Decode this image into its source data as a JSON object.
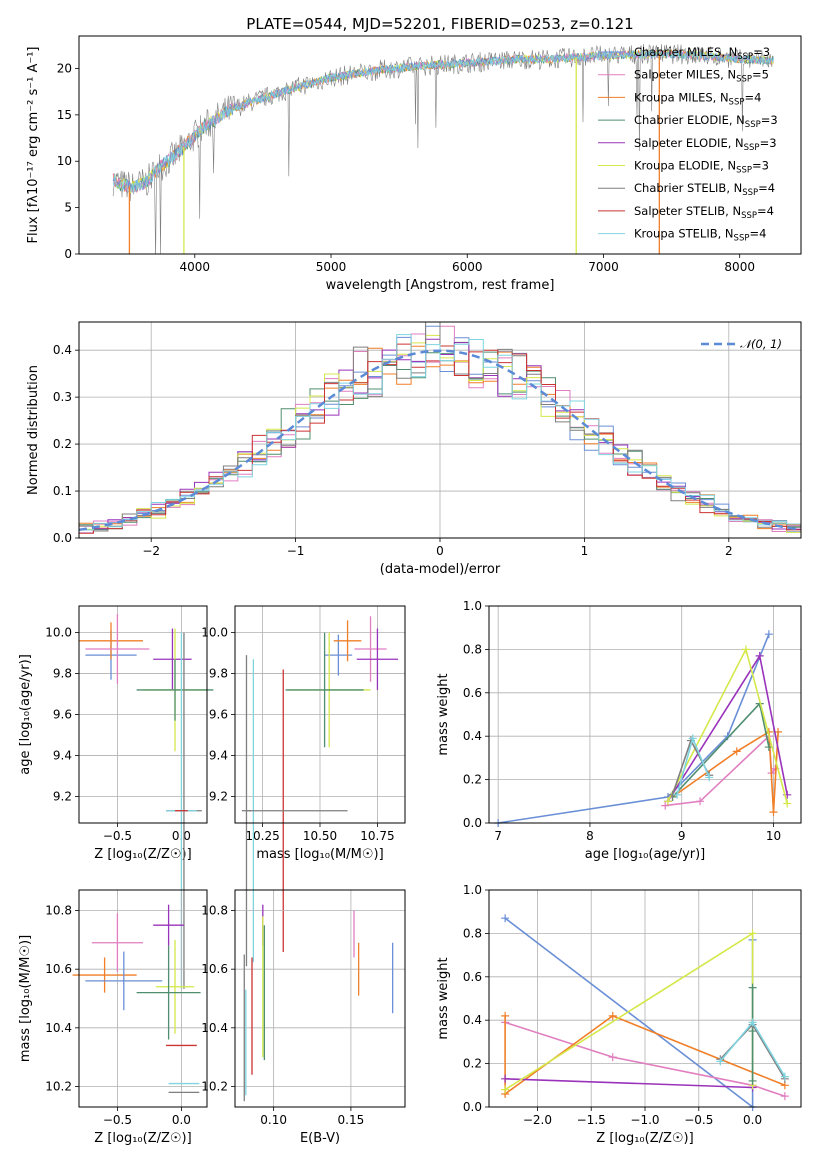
{
  "title": "PLATE=0544, MJD=52201, FIBERID=0253, z=0.121",
  "colors": {
    "chabrier_miles": "#6a8fd6",
    "salpeter_miles": "#e17ec0",
    "kroupa_miles": "#f07f28",
    "chabrier_elodie": "#4f8f6f",
    "salpeter_elodie": "#9933bb",
    "kroupa_elodie": "#d4e84a",
    "chabrier_stelib": "#7f7f7f",
    "salpeter_stelib": "#cc3333",
    "kroupa_stelib": "#7fd4e0",
    "gauss": "#5b8ad6"
  },
  "legend": [
    {
      "base": "Chabrier MILES",
      "sub": "SSP",
      "val": "=3",
      "color": "#6a8fd6"
    },
    {
      "base": "Salpeter MILES",
      "sub": "SSP",
      "val": "=5",
      "color": "#e17ec0"
    },
    {
      "base": "Kroupa MILES",
      "sub": "SSP",
      "val": "=4",
      "color": "#f07f28"
    },
    {
      "base": "Chabrier ELODIE",
      "sub": "SSP",
      "val": "=3",
      "color": "#4f8f6f"
    },
    {
      "base": "Salpeter ELODIE",
      "sub": "SSP",
      "val": "=3",
      "color": "#9933bb"
    },
    {
      "base": "Kroupa ELODIE",
      "sub": "SSP",
      "val": "=3",
      "color": "#d4e84a"
    },
    {
      "base": "Chabrier STELIB",
      "sub": "SSP",
      "val": "=4",
      "color": "#7f7f7f"
    },
    {
      "base": "Salpeter STELIB",
      "sub": "SSP",
      "val": "=4",
      "color": "#cc3333"
    },
    {
      "base": "Kroupa STELIB",
      "sub": "SSP",
      "val": "=4",
      "color": "#7fd4e0"
    }
  ],
  "chart_data": [
    {
      "id": "spectrum",
      "type": "line",
      "xlabel": "wavelength [Angstrom, rest frame]",
      "ylabel": "Flux [fλ10⁻¹⁷ erg cm⁻² s⁻¹ A⁻¹]",
      "xlim": [
        3150,
        8450
      ],
      "ylim": [
        0,
        23.5
      ],
      "xticks": [
        4000,
        5000,
        6000,
        7000,
        8000
      ],
      "yticks": [
        0,
        5,
        10,
        15,
        20
      ],
      "spectrum_trend": {
        "x": [
          3400,
          3450,
          3550,
          3650,
          3750,
          3850,
          3950,
          4050,
          4150,
          4250,
          4400,
          4600,
          4800,
          5000,
          5200,
          5400,
          5600,
          5800,
          6000,
          6200,
          6400,
          6600,
          6800,
          7000,
          7200,
          7400,
          7600,
          7800,
          8000,
          8200
        ],
        "y": [
          8.0,
          7.5,
          7.2,
          7.8,
          9.5,
          10.5,
          12.0,
          13.5,
          14.5,
          15.5,
          16.3,
          17.3,
          18.2,
          19.0,
          19.5,
          19.9,
          20.2,
          20.4,
          20.6,
          20.8,
          21.0,
          21.0,
          21.2,
          21.4,
          21.5,
          21.6,
          21.5,
          21.3,
          21.0,
          20.9
        ]
      },
      "spikes": [
        {
          "x": 3520,
          "color": "#f07f28"
        },
        {
          "x": 3920,
          "color": "#d4e84a"
        },
        {
          "x": 6800,
          "color": "#d4e84a"
        },
        {
          "x": 7410,
          "color": "#f07f28"
        }
      ]
    },
    {
      "id": "residual_hist",
      "type": "histogram",
      "xlabel": "(data-model)/error",
      "ylabel": "Normed distribution",
      "xlim": [
        -2.5,
        2.5
      ],
      "ylim": [
        0,
        0.46
      ],
      "xticks": [
        -2,
        -1,
        0,
        1,
        2
      ],
      "yticks": [
        0.0,
        0.1,
        0.2,
        0.3,
        0.4
      ],
      "bin_width": 0.1,
      "gaussian_label": "𝒩(0, 1)",
      "gaussian": {
        "mean": 0,
        "sigma": 1
      }
    },
    {
      "id": "age_vs_Z",
      "type": "scatter",
      "xlabel": "Z [log₁₀(Z/Z☉)]",
      "ylabel": "age  [log₁₀(age/yr)]",
      "xlim": [
        -0.8,
        0.2
      ],
      "ylim": [
        9.07,
        10.13
      ],
      "xticks": [
        -0.5,
        0.0
      ],
      "yticks": [
        9.2,
        9.4,
        9.6,
        9.8,
        10.0
      ],
      "points": [
        {
          "model": "chabrier_miles",
          "x": -0.55,
          "xerr": 0.2,
          "y": 9.89,
          "yerr": 0.12
        },
        {
          "model": "kroupa_miles",
          "x": -0.55,
          "xerr": 0.25,
          "y": 9.96,
          "yerr": 0.09
        },
        {
          "model": "salpeter_miles",
          "x": -0.5,
          "xerr": 0.25,
          "y": 9.92,
          "yerr": 0.17
        },
        {
          "model": "salpeter_elodie",
          "x": -0.07,
          "xerr": 0.15,
          "y": 9.87,
          "yerr": 0.15
        },
        {
          "model": "kroupa_elodie",
          "x": -0.05,
          "xerr": 0.25,
          "y": 9.72,
          "yerr": 0.3
        },
        {
          "model": "chabrier_elodie",
          "x": -0.05,
          "xerr": 0.3,
          "y": 9.72,
          "yerr": 0.15
        },
        {
          "model": "chabrier_stelib",
          "x": 0.02,
          "xerr": 0.14,
          "y": 9.13,
          "yerr": 0.87
        },
        {
          "model": "kroupa_stelib",
          "x": 0.0,
          "xerr": 0.12,
          "y": 9.13,
          "yerr": 0.87
        },
        {
          "model": "salpeter_stelib",
          "x": 0.0,
          "xerr": 0.05,
          "y": 9.13,
          "yerr": 0.0
        }
      ]
    },
    {
      "id": "age_vs_mass",
      "type": "scatter",
      "xlabel": "mass [log₁₀(M/M☉)]",
      "ylabel": "",
      "xlim": [
        10.13,
        10.87
      ],
      "ylim": [
        9.07,
        10.13
      ],
      "xticks": [
        10.25,
        10.5,
        10.75
      ],
      "yticks": [
        9.2,
        9.4,
        9.6,
        9.8,
        10.0
      ],
      "points": [
        {
          "model": "chabrier_miles",
          "x": 10.58,
          "xerr": 0.06,
          "y": 9.89,
          "yerr": 0.1
        },
        {
          "model": "kroupa_miles",
          "x": 10.62,
          "xerr": 0.06,
          "y": 9.96,
          "yerr": 0.1
        },
        {
          "model": "salpeter_miles",
          "x": 10.72,
          "xerr": 0.07,
          "y": 9.92,
          "yerr": 0.16
        },
        {
          "model": "salpeter_elodie",
          "x": 10.75,
          "xerr": 0.09,
          "y": 9.87,
          "yerr": 0.15
        },
        {
          "model": "kroupa_elodie",
          "x": 10.54,
          "xerr": 0.18,
          "y": 9.72,
          "yerr": 0.28
        },
        {
          "model": "chabrier_elodie",
          "x": 10.52,
          "xerr": 0.17,
          "y": 9.72,
          "yerr": 0.28
        },
        {
          "model": "chabrier_stelib",
          "x": 10.18,
          "xerr": 0.02,
          "y": 9.13,
          "yerr": 0.76
        },
        {
          "model": "kroupa_stelib",
          "x": 10.21,
          "xerr": 0.0,
          "y": 9.13,
          "yerr": 0.74
        },
        {
          "model": "salpeter_stelib",
          "x": 10.34,
          "xerr": 0.0,
          "y": 9.13,
          "yerr": 0.69
        },
        {
          "model": "chabrier_stelib",
          "x": 10.4,
          "xerr": 0.22,
          "y": 9.13,
          "yerr": 0.0
        }
      ]
    },
    {
      "id": "weight_vs_age",
      "type": "line",
      "xlabel": "age  [log₁₀(age/yr)]",
      "ylabel": "mass weight",
      "xlim": [
        6.9,
        10.3
      ],
      "ylim": [
        0,
        1.0
      ],
      "xticks": [
        7,
        8,
        9,
        10
      ],
      "yticks": [
        0.0,
        0.2,
        0.4,
        0.6,
        0.8,
        1.0
      ],
      "series": [
        {
          "model": "chabrier_miles",
          "x": [
            7.0,
            8.85,
            9.5,
            9.95
          ],
          "y": [
            0.0,
            0.12,
            0.4,
            0.87
          ]
        },
        {
          "model": "salpeter_miles",
          "x": [
            8.82,
            9.2,
            9.95,
            9.98,
            10.02
          ],
          "y": [
            0.08,
            0.1,
            0.4,
            0.23,
            0.25
          ]
        },
        {
          "model": "kroupa_miles",
          "x": [
            8.9,
            9.6,
            9.95,
            10.0,
            10.05
          ],
          "y": [
            0.12,
            0.33,
            0.42,
            0.05,
            0.42
          ]
        },
        {
          "model": "chabrier_elodie",
          "x": [
            8.9,
            9.85,
            9.95
          ],
          "y": [
            0.12,
            0.55,
            0.35
          ]
        },
        {
          "model": "salpeter_elodie",
          "x": [
            8.85,
            9.85,
            10.15
          ],
          "y": [
            0.1,
            0.77,
            0.13
          ]
        },
        {
          "model": "kroupa_elodie",
          "x": [
            8.85,
            9.7,
            10.15
          ],
          "y": [
            0.1,
            0.8,
            0.09
          ]
        },
        {
          "model": "chabrier_stelib",
          "x": [
            8.9,
            9.1,
            9.3
          ],
          "y": [
            0.13,
            0.38,
            0.22
          ]
        },
        {
          "model": "kroupa_stelib",
          "x": [
            8.95,
            9.12,
            9.3
          ],
          "y": [
            0.13,
            0.39,
            0.21
          ]
        }
      ]
    },
    {
      "id": "mass_vs_Z",
      "type": "scatter",
      "xlabel": "Z [log₁₀(Z/Z☉)]",
      "ylabel": "mass [log₁₀(M/M☉)]",
      "xlim": [
        -0.8,
        0.2
      ],
      "ylim": [
        10.13,
        10.87
      ],
      "xticks": [
        -0.5,
        0.0
      ],
      "yticks": [
        10.2,
        10.4,
        10.6,
        10.8
      ],
      "points": [
        {
          "model": "kroupa_miles",
          "x": -0.6,
          "xerr": 0.25,
          "y": 10.58,
          "yerr": 0.06
        },
        {
          "model": "salpeter_miles",
          "x": -0.5,
          "xerr": 0.2,
          "y": 10.69,
          "yerr": 0.1
        },
        {
          "model": "chabrier_miles",
          "x": -0.45,
          "xerr": 0.3,
          "y": 10.56,
          "yerr": 0.1
        },
        {
          "model": "salpeter_elodie",
          "x": -0.1,
          "xerr": 0.12,
          "y": 10.75,
          "yerr": 0.07
        },
        {
          "model": "kroupa_elodie",
          "x": -0.05,
          "xerr": 0.15,
          "y": 10.54,
          "yerr": 0.16
        },
        {
          "model": "chabrier_elodie",
          "x": -0.1,
          "xerr": 0.25,
          "y": 10.52,
          "yerr": 0.16
        },
        {
          "model": "salpeter_stelib",
          "x": 0.0,
          "xerr": 0.12,
          "y": 10.34,
          "yerr": 0.0
        },
        {
          "model": "kroupa_stelib",
          "x": 0.02,
          "xerr": 0.12,
          "y": 10.21,
          "yerr": 0.0
        },
        {
          "model": "chabrier_stelib",
          "x": 0.02,
          "xerr": 0.12,
          "y": 10.18,
          "yerr": 0.0
        }
      ]
    },
    {
      "id": "mass_vs_ebv",
      "type": "scatter",
      "xlabel": "E(B-V)",
      "ylabel": "",
      "xlim": [
        0.075,
        0.185
      ],
      "ylim": [
        10.13,
        10.87
      ],
      "xticks": [
        0.1,
        0.15
      ],
      "yticks": [
        10.2,
        10.4,
        10.6,
        10.8
      ],
      "points": [
        {
          "model": "chabrier_miles",
          "x": 0.177,
          "y": 10.57,
          "yerr": 0.12
        },
        {
          "model": "kroupa_miles",
          "x": 0.155,
          "y": 10.6,
          "yerr": 0.09
        },
        {
          "model": "salpeter_miles",
          "x": 0.152,
          "y": 10.72,
          "yerr": 0.08
        },
        {
          "model": "salpeter_elodie",
          "x": 0.093,
          "y": 10.75,
          "yerr": 0.07
        },
        {
          "model": "kroupa_elodie",
          "x": 0.093,
          "y": 10.54,
          "yerr": 0.24
        },
        {
          "model": "chabrier_elodie",
          "x": 0.094,
          "y": 10.52,
          "yerr": 0.23
        },
        {
          "model": "salpeter_stelib",
          "x": 0.086,
          "y": 10.44,
          "yerr": 0.2
        },
        {
          "model": "chabrier_stelib",
          "x": 0.081,
          "y": 10.4,
          "yerr": 0.25
        },
        {
          "model": "kroupa_stelib",
          "x": 0.082,
          "y": 10.35,
          "yerr": 0.18
        }
      ]
    },
    {
      "id": "weight_vs_Z",
      "type": "line",
      "xlabel": "Z [log₁₀(Z/Z☉)]",
      "ylabel": "mass weight",
      "xlim": [
        -2.45,
        0.45
      ],
      "ylim": [
        0,
        1.0
      ],
      "xticks": [
        -2.0,
        -1.5,
        -1.0,
        -0.5,
        0.0
      ],
      "yticks": [
        0.0,
        0.2,
        0.4,
        0.6,
        0.8,
        1.0
      ],
      "series": [
        {
          "model": "chabrier_miles",
          "x": [
            -2.3,
            0.0,
            0.0
          ],
          "y": [
            0.87,
            0.0,
            0.77
          ]
        },
        {
          "model": "salpeter_miles",
          "x": [
            -2.3,
            -1.3,
            0.0,
            0.3
          ],
          "y": [
            0.39,
            0.23,
            0.1,
            0.05
          ]
        },
        {
          "model": "kroupa_miles",
          "x": [
            -2.3,
            -2.3,
            -1.3,
            0.3
          ],
          "y": [
            0.42,
            0.06,
            0.42,
            0.1
          ]
        },
        {
          "model": "salpeter_elodie",
          "x": [
            -2.3,
            0.0
          ],
          "y": [
            0.13,
            0.09
          ]
        },
        {
          "model": "kroupa_elodie",
          "x": [
            -2.3,
            0.0,
            0.0
          ],
          "y": [
            0.08,
            0.8,
            0.1
          ]
        },
        {
          "model": "chabrier_elodie",
          "x": [
            0.0,
            0.0,
            0.0
          ],
          "y": [
            0.12,
            0.55,
            0.35
          ]
        },
        {
          "model": "chabrier_stelib",
          "x": [
            -0.3,
            0.0,
            0.3
          ],
          "y": [
            0.22,
            0.38,
            0.13
          ]
        },
        {
          "model": "kroupa_stelib",
          "x": [
            -0.3,
            0.0,
            0.3
          ],
          "y": [
            0.21,
            0.39,
            0.14
          ]
        }
      ]
    }
  ]
}
